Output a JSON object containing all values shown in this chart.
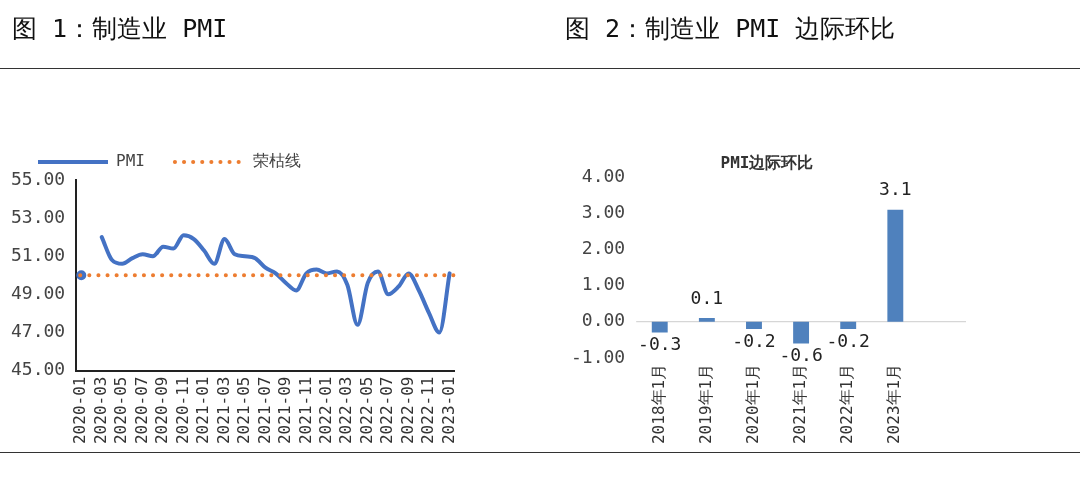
{
  "chart_data": [
    {
      "type": "line",
      "title": "图 1：制造业 PMI",
      "categories": [
        "2020-01",
        null,
        "2020-03",
        null,
        "2020-05",
        null,
        "2020-07",
        null,
        "2020-09",
        null,
        "2020-11",
        null,
        "2021-01",
        null,
        "2021-03",
        null,
        "2021-05",
        null,
        "2021-07",
        null,
        "2021-09",
        null,
        "2021-11",
        null,
        "2022-01",
        null,
        "2022-03",
        null,
        "2022-05",
        null,
        "2022-07",
        null,
        "2022-09",
        null,
        "2022-11",
        null,
        "2023-01"
      ],
      "series": [
        {
          "name": "PMI",
          "color": "#4472c4",
          "line_style": "solid",
          "values": [
            50.0,
            null,
            52.0,
            50.8,
            50.6,
            50.9,
            51.1,
            51.0,
            51.5,
            51.4,
            52.1,
            51.9,
            51.3,
            50.6,
            51.9,
            51.1,
            51.0,
            50.9,
            50.4,
            50.1,
            49.6,
            49.2,
            50.1,
            50.3,
            50.1,
            50.2,
            49.5,
            47.4,
            49.6,
            50.2,
            49.0,
            49.4,
            50.1,
            49.2,
            48.0,
            47.0,
            50.1
          ]
        }
      ],
      "ref_lines": [
        {
          "axis": "y",
          "value": 50,
          "label": "荣枯线",
          "color": "#ed7d31",
          "line_style": "dotted"
        }
      ],
      "ylim": [
        45,
        55
      ],
      "yticks": [
        {
          "value": 45,
          "label": "45.00"
        },
        {
          "value": 47,
          "label": "47.00"
        },
        {
          "value": 49,
          "label": "49.00"
        },
        {
          "value": 51,
          "label": "51.00"
        },
        {
          "value": 53,
          "label": "53.00"
        },
        {
          "value": 55,
          "label": "55.00"
        }
      ],
      "marker": "none",
      "legend": "top left"
    },
    {
      "type": "bar",
      "title": "图 2：制造业 PMI 边际环比",
      "subtitle": "PMI边际环比",
      "categories": [
        "2018年1月",
        "2019年1月",
        "2020年1月",
        "2021年1月",
        "2022年1月",
        "2023年1月",
        null
      ],
      "series": [
        {
          "color": "#4f81bd",
          "values": [
            -0.3,
            0.1,
            -0.2,
            -0.6,
            -0.2,
            3.1,
            null
          ]
        }
      ],
      "ylim": [
        -1,
        4
      ],
      "yticks": [
        {
          "value": -1,
          "label": "-1.00"
        },
        {
          "value": 0,
          "label": "0.00"
        },
        {
          "value": 1,
          "label": "1.00"
        },
        {
          "value": 2,
          "label": "2.00"
        },
        {
          "value": 3,
          "label": "3.00"
        },
        {
          "value": 4,
          "label": "4.00"
        }
      ],
      "data_labels": true
    }
  ]
}
